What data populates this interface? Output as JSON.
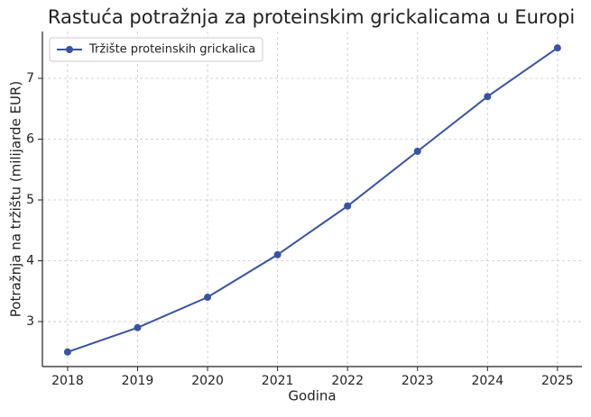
{
  "chart_data": {
    "type": "line",
    "title": "Rastuća potražnja za proteinskim grickalicama u Europi",
    "xlabel": "Godina",
    "ylabel": "Potražnja na tržištu (milijarde EUR)",
    "x": [
      2018,
      2019,
      2020,
      2021,
      2022,
      2023,
      2024,
      2025
    ],
    "series": [
      {
        "name": "Tržište proteinskih grickalica",
        "color": "#3a53a4",
        "values": [
          2.5,
          2.9,
          3.4,
          4.1,
          4.9,
          5.8,
          6.7,
          7.5
        ]
      }
    ],
    "xlim": [
      2017.64,
      2025.35
    ],
    "ylim": [
      2.26,
      7.77
    ],
    "xticks": [
      2018,
      2019,
      2020,
      2021,
      2022,
      2023,
      2024,
      2025
    ],
    "yticks": [
      3,
      4,
      5,
      6,
      7
    ],
    "grid": true,
    "legend": "upper left"
  }
}
